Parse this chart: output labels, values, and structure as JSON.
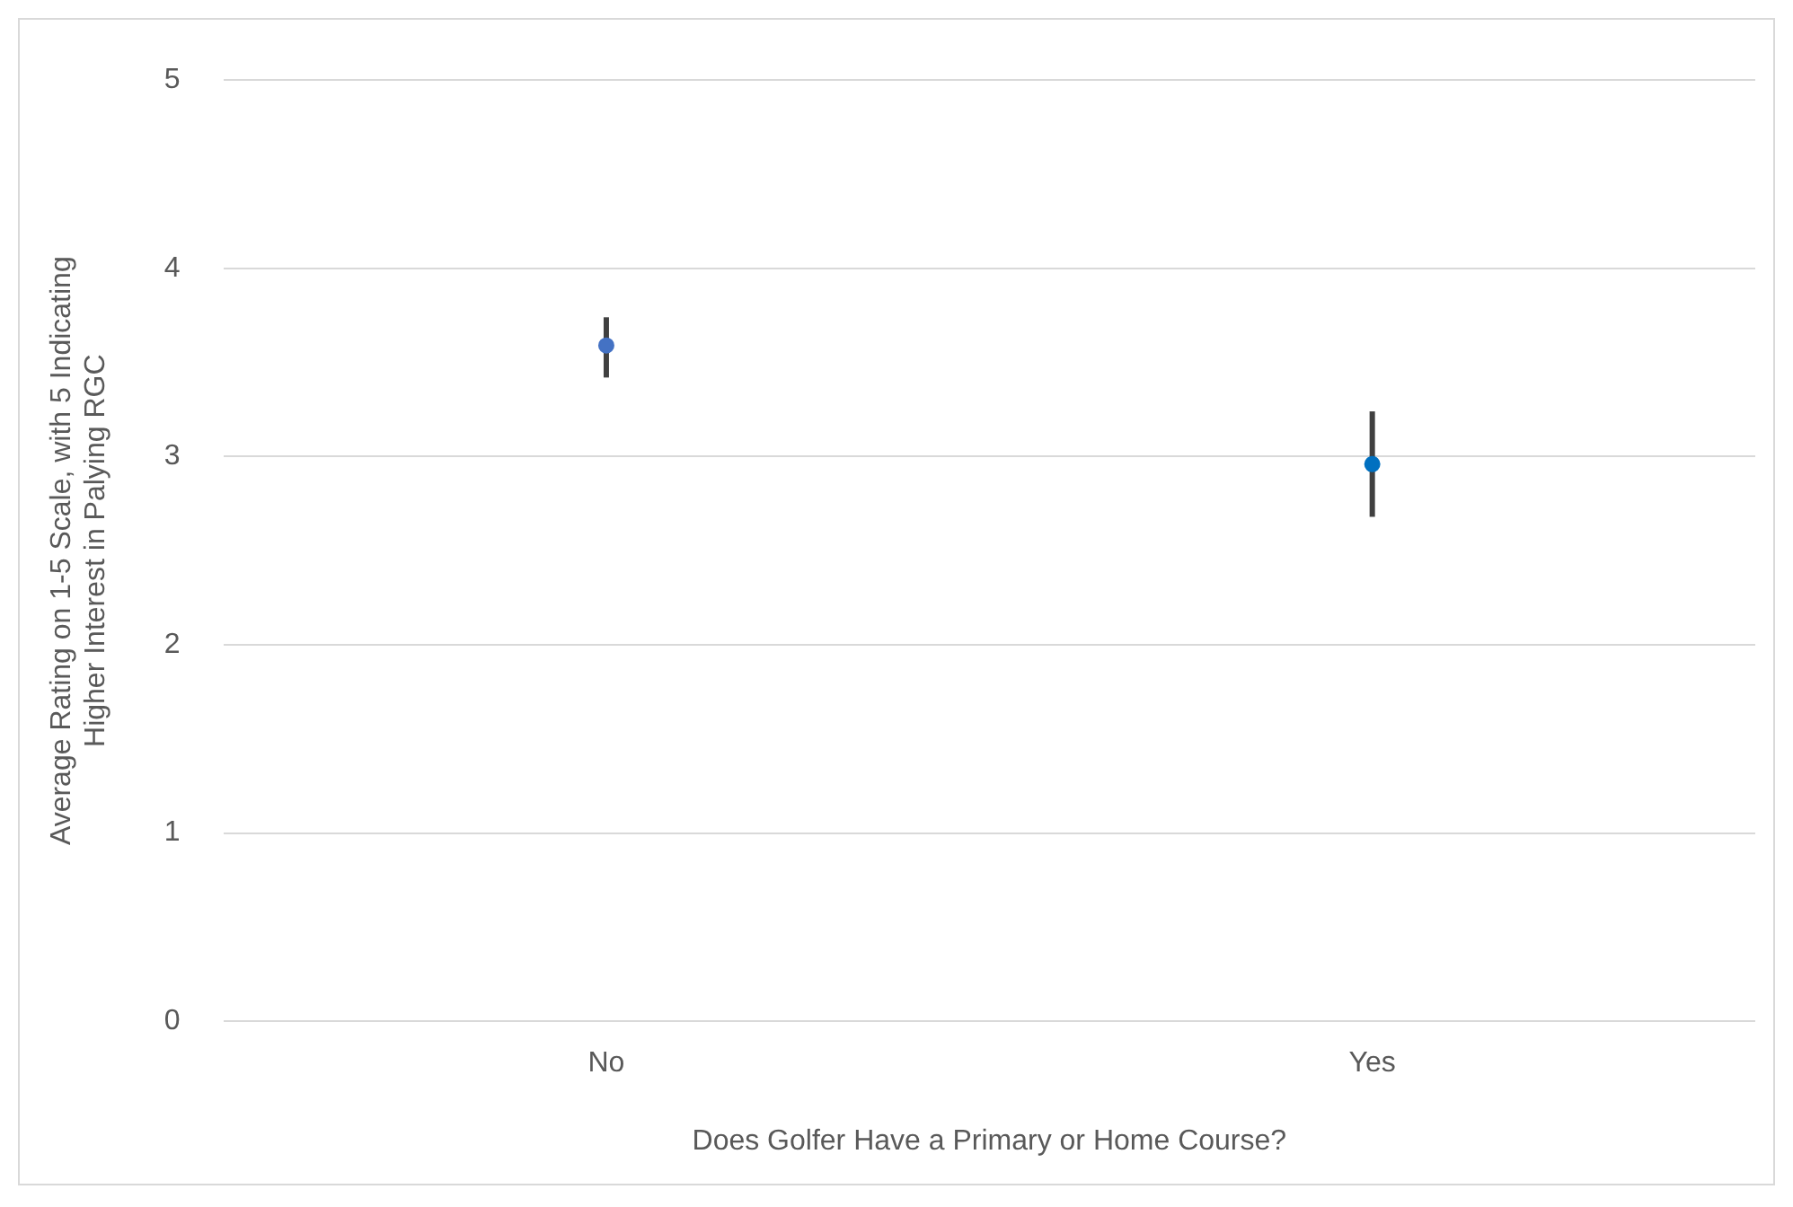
{
  "chart_data": {
    "type": "scatter",
    "xlabel": "Does Golfer Have a Primary or Home Course?",
    "ylabel": "Average Rating on 1-5 Scale, with 5 Indicating Higher Interest in Palying RGC",
    "categories": [
      "No",
      "Yes"
    ],
    "values": [
      3.59,
      2.96
    ],
    "colors": [
      "#4472c4",
      "#0070c0"
    ],
    "errors": [
      [
        3.42,
        3.74
      ],
      [
        2.68,
        3.24
      ]
    ],
    "ylim": [
      0,
      5
    ],
    "yticks": [
      0,
      1,
      2,
      3,
      4,
      5
    ],
    "grid": "y",
    "marker": "circle"
  }
}
